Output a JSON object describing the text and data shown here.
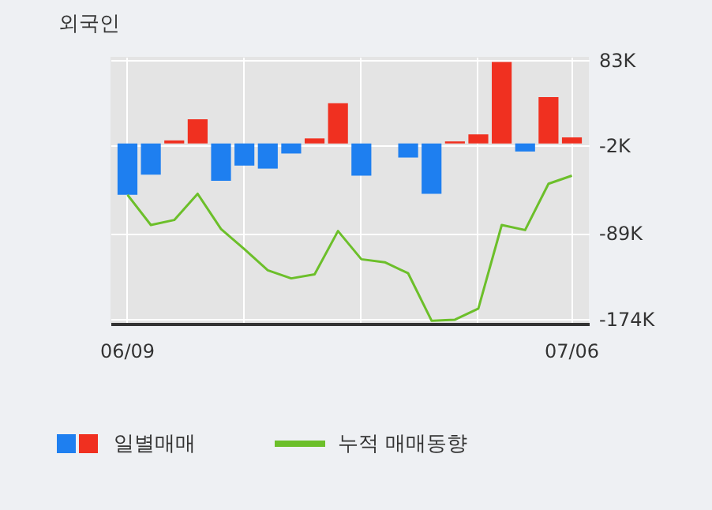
{
  "chart_data": {
    "type": "bar",
    "title": "외국인",
    "categories": [
      "06/09",
      null,
      null,
      null,
      null,
      null,
      null,
      null,
      null,
      null,
      null,
      null,
      null,
      null,
      null,
      null,
      null,
      null,
      null,
      "07/06"
    ],
    "series": [
      {
        "name": "일별매매",
        "values": [
          -51,
          -31,
          3,
          24,
          -37,
          -22,
          -25,
          -10,
          5,
          40,
          -32,
          0,
          -14,
          -50,
          2,
          9,
          81,
          -8,
          46,
          6
        ],
        "colors": [
          "#1e7ff0",
          "#1e7ff0",
          "#f03020",
          "#f03020",
          "#1e7ff0",
          "#1e7ff0",
          "#1e7ff0",
          "#1e7ff0",
          "#f03020",
          "#f03020",
          "#1e7ff0",
          "#f03020",
          "#1e7ff0",
          "#1e7ff0",
          "#f03020",
          "#f03020",
          "#f03020",
          "#1e7ff0",
          "#f03020",
          "#f03020"
        ]
      },
      {
        "name": "누적 매매동향",
        "type": "line",
        "color": "#6cbf2a",
        "values": [
          -51,
          -81,
          -76,
          -50,
          -85,
          -105,
          -126,
          -134,
          -130,
          -87,
          -115,
          -118,
          -129,
          -176,
          -175,
          -164,
          -81,
          -86,
          -40,
          -32
        ]
      }
    ],
    "ylim": [
      -179,
      86
    ],
    "yticks": [
      {
        "value": 83,
        "label": "83K"
      },
      {
        "value": -2,
        "label": "-2K"
      },
      {
        "value": -89,
        "label": "-89K"
      },
      {
        "value": -174,
        "label": "-174K"
      }
    ],
    "grid": true,
    "legend": "bottom"
  }
}
